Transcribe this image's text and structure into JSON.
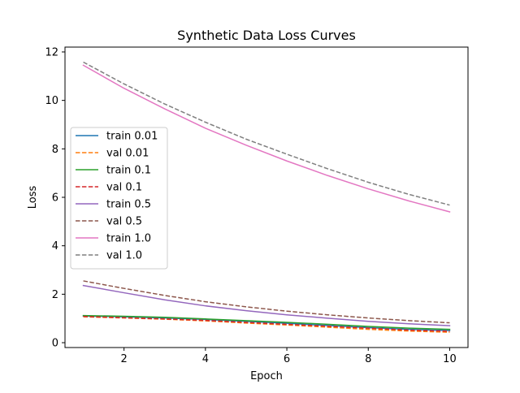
{
  "chart_data": {
    "type": "line",
    "title": "Synthetic Data Loss Curves",
    "xlabel": "Epoch",
    "ylabel": "Loss",
    "xlim": [
      0.55,
      10.45
    ],
    "ylim": [
      -0.2,
      12.2
    ],
    "xticks": [
      2,
      4,
      6,
      8,
      10
    ],
    "yticks": [
      0,
      2,
      4,
      6,
      8,
      10,
      12
    ],
    "grid": false,
    "legend_position": "center-left",
    "x": [
      1,
      2,
      3,
      4,
      5,
      6,
      7,
      8,
      9,
      10
    ],
    "series": [
      {
        "name": "train 0.01",
        "style": "solid",
        "color": "#1f77b4",
        "values": [
          1.1,
          1.07,
          1.02,
          0.96,
          0.88,
          0.8,
          0.71,
          0.62,
          0.55,
          0.5
        ]
      },
      {
        "name": "val 0.01",
        "style": "dashed",
        "color": "#ff7f0e",
        "values": [
          1.07,
          1.02,
          0.97,
          0.9,
          0.81,
          0.73,
          0.64,
          0.55,
          0.48,
          0.43
        ]
      },
      {
        "name": "train 0.1",
        "style": "solid",
        "color": "#2ca02c",
        "values": [
          1.12,
          1.09,
          1.05,
          0.98,
          0.91,
          0.84,
          0.76,
          0.67,
          0.6,
          0.55
        ]
      },
      {
        "name": "val 0.1",
        "style": "dashed",
        "color": "#d62728",
        "values": [
          1.08,
          1.03,
          0.98,
          0.92,
          0.84,
          0.76,
          0.68,
          0.6,
          0.52,
          0.47
        ]
      },
      {
        "name": "train 0.5",
        "style": "solid",
        "color": "#9467bd",
        "values": [
          2.36,
          2.06,
          1.77,
          1.52,
          1.32,
          1.15,
          1.01,
          0.88,
          0.78,
          0.7
        ]
      },
      {
        "name": "val 0.5",
        "style": "dashed",
        "color": "#8c564b",
        "values": [
          2.55,
          2.24,
          1.95,
          1.69,
          1.48,
          1.3,
          1.15,
          1.02,
          0.91,
          0.82
        ]
      },
      {
        "name": "train 1.0",
        "style": "solid",
        "color": "#e377c2",
        "values": [
          11.45,
          10.5,
          9.65,
          8.85,
          8.15,
          7.5,
          6.9,
          6.35,
          5.85,
          5.4
        ]
      },
      {
        "name": "val 1.0",
        "style": "dashed",
        "color": "#7f7f7f",
        "values": [
          11.58,
          10.68,
          9.85,
          9.1,
          8.4,
          7.78,
          7.18,
          6.62,
          6.12,
          5.68
        ]
      }
    ]
  }
}
